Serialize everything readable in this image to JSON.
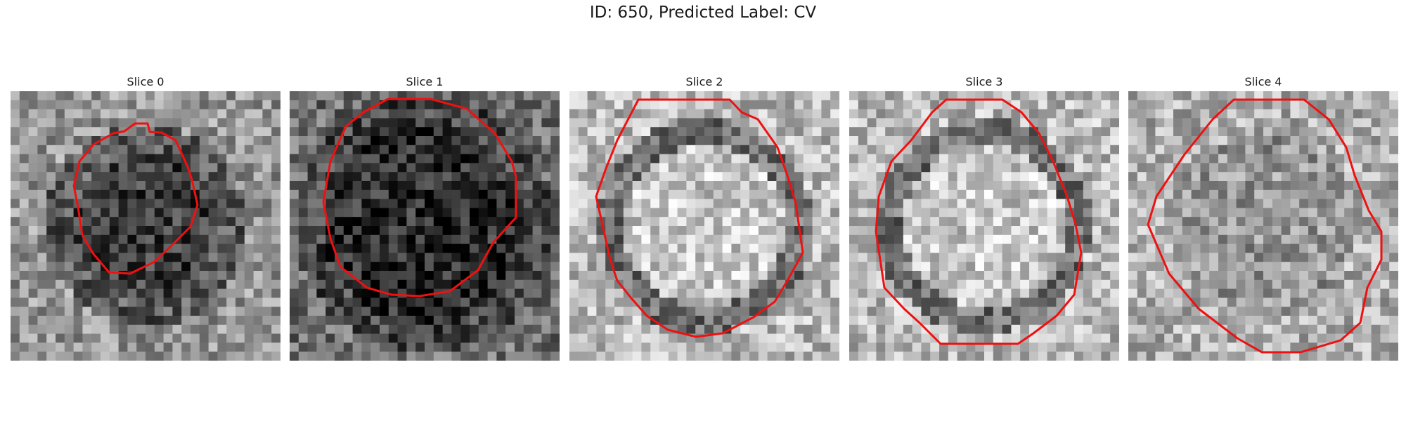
{
  "figure": {
    "title": "ID: 650, Predicted Label: CV"
  },
  "slices": [
    {
      "title": "Slice 0",
      "tone": "dark-center"
    },
    {
      "title": "Slice 1",
      "tone": "dark-center"
    },
    {
      "title": "Slice 2",
      "tone": "bright-center"
    },
    {
      "title": "Slice 3",
      "tone": "bright-center"
    },
    {
      "title": "Slice 4",
      "tone": "mid"
    }
  ],
  "style": {
    "contour_color": "#ee1111",
    "colormap": "grayscale"
  }
}
